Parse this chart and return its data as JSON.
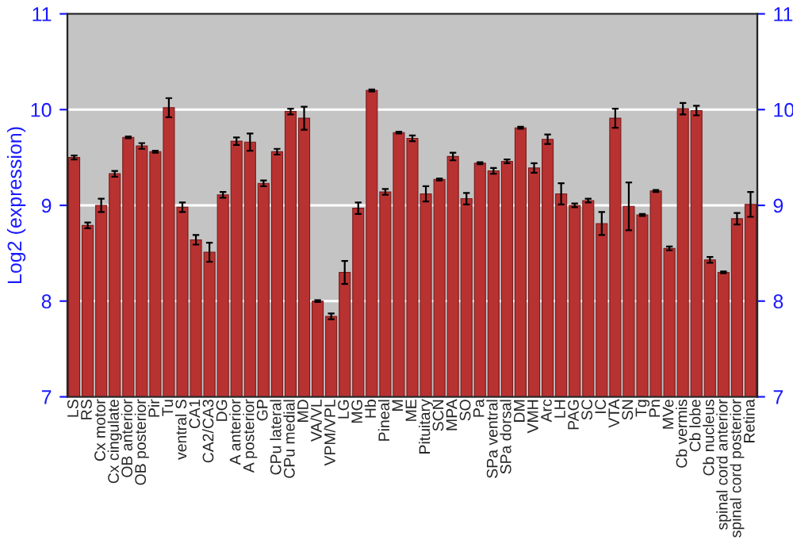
{
  "chart_data": {
    "type": "bar",
    "ylabel": "Log2 (expression)",
    "categories": [
      "LS",
      "RS",
      "Cx motor",
      "Cx cingulate",
      "OB anterior",
      "OB posterior",
      "Pir",
      "Tu",
      "ventral S",
      "CA1",
      "CA2/CA3",
      "DG",
      "A anterior",
      "A posterior",
      "GP",
      "CPu lateral",
      "CPu medial",
      "MD",
      "VA/VL",
      "VPM/VPL",
      "LG",
      "MG",
      "Hb",
      "Pineal",
      "M",
      "ME",
      "Pituitary",
      "SCN",
      "MPA",
      "SO",
      "Pa",
      "SPa ventral",
      "SPa dorsal",
      "DM",
      "VMH",
      "Arc",
      "LH",
      "PAG",
      "SC",
      "IC",
      "VTA",
      "SN",
      "Tg",
      "Pn",
      "MVe",
      "Cb vermis",
      "Cb lobe",
      "Cb nucleus",
      "spinal cord anterior",
      "spinal cord posterior",
      "Retina"
    ],
    "values": [
      9.5,
      8.79,
      9.0,
      9.33,
      9.71,
      9.62,
      9.56,
      10.02,
      8.98,
      8.64,
      8.51,
      9.11,
      9.67,
      9.66,
      9.23,
      9.56,
      9.98,
      9.91,
      8.0,
      7.84,
      8.3,
      8.97,
      10.2,
      9.14,
      9.76,
      9.7,
      9.12,
      9.27,
      9.51,
      9.07,
      9.44,
      9.36,
      9.46,
      9.81,
      9.39,
      9.69,
      9.12,
      9.0,
      9.05,
      8.81,
      9.91,
      8.99,
      8.9,
      9.15,
      8.55,
      10.01,
      9.99,
      8.43,
      8.3,
      8.86,
      9.01
    ],
    "errors": [
      0.02,
      0.03,
      0.07,
      0.03,
      0.01,
      0.03,
      0.01,
      0.1,
      0.05,
      0.05,
      0.1,
      0.03,
      0.04,
      0.09,
      0.03,
      0.03,
      0.03,
      0.12,
      0.01,
      0.03,
      0.12,
      0.06,
      0.01,
      0.03,
      0.01,
      0.03,
      0.08,
      0.01,
      0.04,
      0.06,
      0.01,
      0.03,
      0.02,
      0.01,
      0.05,
      0.05,
      0.11,
      0.02,
      0.02,
      0.12,
      0.1,
      0.25,
      0.01,
      0.01,
      0.02,
      0.06,
      0.05,
      0.03,
      0.01,
      0.06,
      0.13
    ],
    "color": "#b83232",
    "ylim": [
      7,
      11
    ],
    "yticks": [
      7,
      8,
      9,
      10,
      11
    ],
    "y2lim": [
      7,
      11
    ],
    "y2ticks": [
      7,
      8,
      9,
      10,
      11
    ],
    "grid": "y"
  }
}
